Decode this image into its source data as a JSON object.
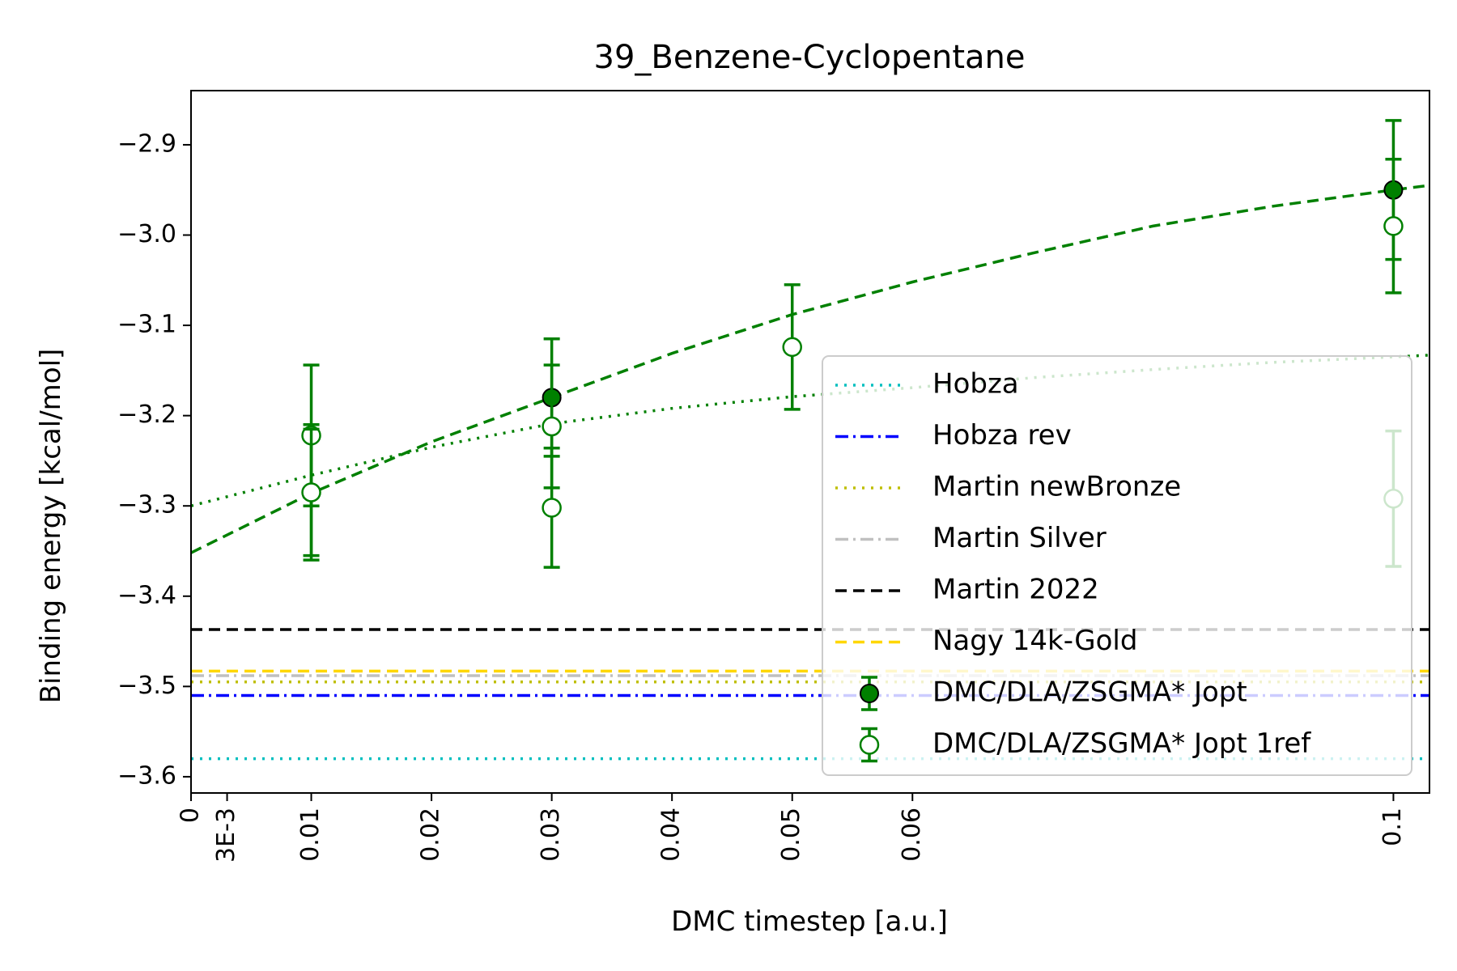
{
  "chart_data": {
    "type": "scatter",
    "title": "39_Benzene-Cyclopentane",
    "xlabel": "DMC timestep [a.u.]",
    "ylabel": "Binding energy [kcal/mol]",
    "xlim": [
      0,
      0.103
    ],
    "ylim": [
      -3.618,
      -2.84
    ],
    "x_ticks": [
      {
        "value": 0,
        "label": "0"
      },
      {
        "value": 0.003,
        "label": "3E-3"
      },
      {
        "value": 0.01,
        "label": "0.01"
      },
      {
        "value": 0.02,
        "label": "0.02"
      },
      {
        "value": 0.03,
        "label": "0.03"
      },
      {
        "value": 0.04,
        "label": "0.04"
      },
      {
        "value": 0.05,
        "label": "0.05"
      },
      {
        "value": 0.06,
        "label": "0.06"
      },
      {
        "value": 0.1,
        "label": "0.1"
      }
    ],
    "y_ticks": [
      {
        "value": -2.9,
        "label": "−2.9"
      },
      {
        "value": -3.0,
        "label": "−3.0"
      },
      {
        "value": -3.1,
        "label": "−3.1"
      },
      {
        "value": -3.2,
        "label": "−3.2"
      },
      {
        "value": -3.3,
        "label": "−3.3"
      },
      {
        "value": -3.4,
        "label": "−3.4"
      },
      {
        "value": -3.5,
        "label": "−3.5"
      },
      {
        "value": -3.6,
        "label": "−3.6"
      }
    ],
    "grid": false,
    "legend_position": "lower-right",
    "reference_lines": [
      {
        "name": "Hobza",
        "y": -3.58,
        "color": "#00bfbf",
        "style": "dotted"
      },
      {
        "name": "Hobza rev",
        "y": -3.51,
        "color": "#0000ff",
        "style": "dashdot"
      },
      {
        "name": "Martin newBronze",
        "y": -3.495,
        "color": "#bfbf00",
        "style": "dotted"
      },
      {
        "name": "Martin Silver",
        "y": -3.488,
        "color": "#c0c0c0",
        "style": "dashdot"
      },
      {
        "name": "Martin 2022",
        "y": -3.437,
        "color": "#000000",
        "style": "dashed"
      },
      {
        "name": "Nagy 14k-Gold",
        "y": -3.483,
        "color": "#ffd700",
        "style": "dashed"
      }
    ],
    "series": [
      {
        "name": "DMC/DLA/ZSGMA* Jopt",
        "color": "#008000",
        "marker": "filled",
        "points": [
          {
            "x": 0.01,
            "y": -3.285,
            "err": 0.075
          },
          {
            "x": 0.03,
            "y": -3.18,
            "err": 0.065
          },
          {
            "x": 0.1,
            "y": -2.95,
            "err": 0.077
          }
        ]
      },
      {
        "name": "DMC/DLA/ZSGMA* Jopt 1ref",
        "color": "#008000",
        "marker": "open",
        "points": [
          {
            "x": 0.01,
            "y": -3.222,
            "err": 0.078
          },
          {
            "x": 0.03,
            "y": -3.212,
            "err": 0.068
          },
          {
            "x": 0.01,
            "y": -3.285,
            "err": 0.07
          },
          {
            "x": 0.03,
            "y": -3.302,
            "err": 0.066
          },
          {
            "x": 0.05,
            "y": -3.124,
            "err": 0.069
          },
          {
            "x": 0.1,
            "y": -2.99,
            "err": 0.074
          },
          {
            "x": 0.1,
            "y": -3.292,
            "err": 0.075
          }
        ]
      }
    ],
    "fits": [
      {
        "series": "DMC/DLA/ZSGMA* Jopt",
        "style": "dashed",
        "color": "#008000",
        "x": [
          0,
          0.01,
          0.02,
          0.03,
          0.04,
          0.05,
          0.06,
          0.07,
          0.08,
          0.09,
          0.1,
          0.103
        ],
        "y": [
          -3.352,
          -3.286,
          -3.229,
          -3.18,
          -3.131,
          -3.088,
          -3.052,
          -3.02,
          -2.99,
          -2.968,
          -2.95,
          -2.945
        ]
      },
      {
        "series": "DMC/DLA/ZSGMA* Jopt 1ref",
        "style": "dotted",
        "color": "#008000",
        "x": [
          0,
          0.01,
          0.02,
          0.03,
          0.04,
          0.05,
          0.06,
          0.07,
          0.08,
          0.09,
          0.1,
          0.103
        ],
        "y": [
          -3.3,
          -3.266,
          -3.235,
          -3.209,
          -3.192,
          -3.179,
          -3.169,
          -3.158,
          -3.149,
          -3.141,
          -3.135,
          -3.133
        ]
      }
    ]
  }
}
